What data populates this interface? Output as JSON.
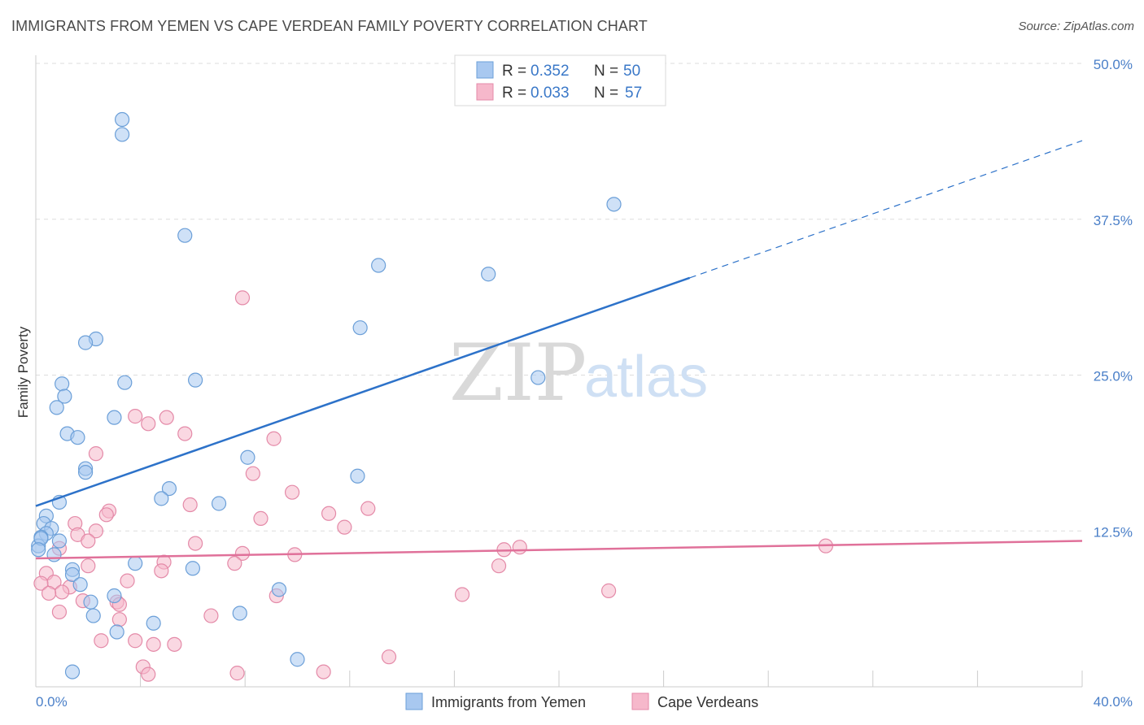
{
  "title": "IMMIGRANTS FROM YEMEN VS CAPE VERDEAN FAMILY POVERTY CORRELATION CHART",
  "source": "Source: ZipAtlas.com",
  "watermark": {
    "zip": "ZIP",
    "atlas": "atlas"
  },
  "colors": {
    "blue_fill": "#a8c8f0",
    "blue_stroke": "#6b9fd8",
    "blue_line": "#2d72c9",
    "pink_fill": "#f6b8cb",
    "pink_stroke": "#e48aa8",
    "pink_line": "#e0719a",
    "tick_text": "#4a7fc8",
    "grid": "#dddddd"
  },
  "legend": {
    "rows": [
      {
        "r_label": "R = ",
        "r_value": "0.352",
        "n_label": "N = ",
        "n_value": "50"
      },
      {
        "r_label": "R = ",
        "r_value": "0.033",
        "n_label": "N = ",
        "n_value": "57"
      }
    ]
  },
  "bottom_legend": [
    "Immigrants from Yemen",
    "Cape Verdeans"
  ],
  "chart_data": {
    "type": "scatter",
    "xlabel": "",
    "ylabel": "Family Poverty",
    "xlim": [
      0,
      40
    ],
    "ylim": [
      0,
      50
    ],
    "x_tick_labels": [
      "0.0%",
      "40.0%"
    ],
    "y_ticks": [
      12.5,
      25.0,
      37.5,
      50.0
    ],
    "y_tick_labels": [
      "12.5%",
      "25.0%",
      "37.5%",
      "50.0%"
    ],
    "grid": true,
    "legend_position": "top-center",
    "series": [
      {
        "name": "Immigrants from Yemen",
        "color": "blue",
        "trend": {
          "x0": 0,
          "y0": 14.5,
          "x1": 25,
          "y1": 32.8,
          "x_dash_end": 40,
          "y_dash_end": 43.8
        },
        "points": [
          [
            3.3,
            45.5
          ],
          [
            3.3,
            44.3
          ],
          [
            5.7,
            36.2
          ],
          [
            13.1,
            33.8
          ],
          [
            17.3,
            33.1
          ],
          [
            22.1,
            38.7
          ],
          [
            12.4,
            28.8
          ],
          [
            2.3,
            27.9
          ],
          [
            1.9,
            27.6
          ],
          [
            3.4,
            24.4
          ],
          [
            6.1,
            24.6
          ],
          [
            19.2,
            24.8
          ],
          [
            1.0,
            24.3
          ],
          [
            1.1,
            23.3
          ],
          [
            0.8,
            22.4
          ],
          [
            3.0,
            21.6
          ],
          [
            1.2,
            20.3
          ],
          [
            1.6,
            20.0
          ],
          [
            8.1,
            18.4
          ],
          [
            12.3,
            16.9
          ],
          [
            1.9,
            17.5
          ],
          [
            1.9,
            17.2
          ],
          [
            5.1,
            15.9
          ],
          [
            4.8,
            15.1
          ],
          [
            0.9,
            14.8
          ],
          [
            7.0,
            14.7
          ],
          [
            0.4,
            13.7
          ],
          [
            0.3,
            13.1
          ],
          [
            0.6,
            12.7
          ],
          [
            0.4,
            12.3
          ],
          [
            0.2,
            12.0
          ],
          [
            0.9,
            11.7
          ],
          [
            0.7,
            10.6
          ],
          [
            3.8,
            9.9
          ],
          [
            1.4,
            9.4
          ],
          [
            1.4,
            9.0
          ],
          [
            6.0,
            9.5
          ],
          [
            1.7,
            8.2
          ],
          [
            9.3,
            7.8
          ],
          [
            3.0,
            7.3
          ],
          [
            2.1,
            6.8
          ],
          [
            4.5,
            5.1
          ],
          [
            7.8,
            5.9
          ],
          [
            2.2,
            5.7
          ],
          [
            3.1,
            4.4
          ],
          [
            10.0,
            2.2
          ],
          [
            1.4,
            1.2
          ],
          [
            0.1,
            11.3
          ],
          [
            0.2,
            11.9
          ],
          [
            0.1,
            11.0
          ]
        ]
      },
      {
        "name": "Cape Verdeans",
        "color": "pink",
        "trend": {
          "x0": 0,
          "y0": 10.3,
          "x1": 40,
          "y1": 11.7
        },
        "points": [
          [
            7.9,
            31.2
          ],
          [
            3.8,
            21.7
          ],
          [
            5.0,
            21.6
          ],
          [
            4.3,
            21.1
          ],
          [
            5.7,
            20.3
          ],
          [
            9.1,
            19.9
          ],
          [
            2.3,
            18.7
          ],
          [
            8.3,
            17.1
          ],
          [
            9.8,
            15.6
          ],
          [
            5.9,
            14.6
          ],
          [
            12.7,
            14.3
          ],
          [
            2.8,
            14.1
          ],
          [
            11.2,
            13.9
          ],
          [
            2.7,
            13.8
          ],
          [
            8.6,
            13.5
          ],
          [
            1.5,
            13.1
          ],
          [
            11.8,
            12.8
          ],
          [
            2.3,
            12.5
          ],
          [
            1.6,
            12.2
          ],
          [
            2.0,
            11.7
          ],
          [
            6.1,
            11.5
          ],
          [
            17.9,
            11.0
          ],
          [
            0.9,
            11.1
          ],
          [
            18.5,
            11.2
          ],
          [
            7.9,
            10.7
          ],
          [
            9.9,
            10.6
          ],
          [
            4.9,
            10.0
          ],
          [
            7.6,
            9.9
          ],
          [
            2.0,
            9.7
          ],
          [
            17.7,
            9.7
          ],
          [
            4.8,
            9.3
          ],
          [
            0.4,
            9.1
          ],
          [
            0.7,
            8.4
          ],
          [
            3.5,
            8.5
          ],
          [
            0.2,
            8.3
          ],
          [
            1.3,
            8.0
          ],
          [
            1.0,
            7.6
          ],
          [
            0.5,
            7.5
          ],
          [
            16.3,
            7.4
          ],
          [
            21.9,
            7.7
          ],
          [
            9.2,
            7.3
          ],
          [
            1.8,
            6.9
          ],
          [
            3.1,
            6.8
          ],
          [
            3.2,
            6.6
          ],
          [
            0.9,
            6.0
          ],
          [
            6.7,
            5.7
          ],
          [
            3.2,
            5.4
          ],
          [
            2.5,
            3.7
          ],
          [
            3.8,
            3.7
          ],
          [
            4.5,
            3.4
          ],
          [
            5.3,
            3.4
          ],
          [
            13.5,
            2.4
          ],
          [
            4.1,
            1.6
          ],
          [
            4.3,
            1.0
          ],
          [
            7.7,
            1.1
          ],
          [
            11.0,
            1.2
          ],
          [
            30.2,
            11.3
          ]
        ]
      }
    ]
  }
}
